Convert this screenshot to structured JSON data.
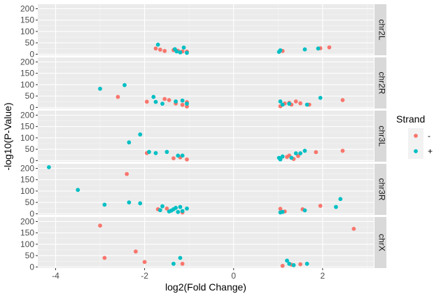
{
  "chart_data": {
    "type": "scatter",
    "xlabel": "log2(Fold Change)",
    "ylabel": "-log10(P-Value)",
    "xlim": [
      -4.4,
      3.15
    ],
    "ylim": [
      -5,
      220
    ],
    "x_ticks": [
      -4,
      -2,
      0,
      2
    ],
    "x_tick_labels": [
      "-4",
      "-2",
      "0",
      "2"
    ],
    "y_ticks": [
      0,
      50,
      100,
      150,
      200
    ],
    "y_tick_labels": [
      "0",
      "50",
      "100",
      "150",
      "200"
    ],
    "grid": true,
    "legend": {
      "title": "Strand",
      "placement": "right",
      "entries": [
        {
          "label": "-",
          "color": "#F8766D"
        },
        {
          "label": "+",
          "color": "#00BFC4"
        }
      ]
    },
    "panel_background": "#EBEBEB",
    "strip_background": "#D9D9D9",
    "facets": [
      {
        "label": "chr2L",
        "series": [
          {
            "strand": "-",
            "points": [
              [
                -1.75,
                25
              ],
              [
                -1.65,
                20
              ],
              [
                -1.55,
                14
              ],
              [
                -1.35,
                18
              ],
              [
                -1.25,
                15
              ],
              [
                -1.15,
                12
              ],
              [
                -1.05,
                11
              ],
              [
                1.1,
                14
              ],
              [
                1.95,
                26
              ],
              [
                2.15,
                30
              ]
            ]
          },
          {
            "strand": "+",
            "points": [
              [
                -1.7,
                42
              ],
              [
                -1.32,
                22
              ],
              [
                -1.28,
                12
              ],
              [
                -1.2,
                8
              ],
              [
                -1.12,
                29
              ],
              [
                -1.05,
                6
              ],
              [
                1.02,
                10
              ],
              [
                1.05,
                17
              ],
              [
                1.6,
                21
              ],
              [
                1.9,
                25
              ]
            ]
          }
        ]
      },
      {
        "label": "chr2R",
        "series": [
          {
            "strand": "-",
            "points": [
              [
                -2.6,
                46
              ],
              [
                -1.95,
                25
              ],
              [
                -1.55,
                37
              ],
              [
                -1.45,
                32
              ],
              [
                -1.3,
                17
              ],
              [
                -1.15,
                11
              ],
              [
                -1.05,
                23
              ],
              [
                -1.05,
                4
              ],
              [
                1.05,
                5
              ],
              [
                1.15,
                17
              ],
              [
                1.25,
                20
              ],
              [
                1.3,
                12
              ],
              [
                1.4,
                26
              ],
              [
                1.5,
                18
              ],
              [
                1.7,
                12
              ],
              [
                2.45,
                32
              ]
            ]
          },
          {
            "strand": "+",
            "points": [
              [
                -3.0,
                82
              ],
              [
                -2.45,
                98
              ],
              [
                -1.8,
                46
              ],
              [
                -1.75,
                24
              ],
              [
                -1.6,
                16
              ],
              [
                -1.3,
                26
              ],
              [
                -1.15,
                30
              ],
              [
                -1.05,
                16
              ],
              [
                1.05,
                26
              ],
              [
                1.1,
                12
              ],
              [
                1.25,
                16
              ],
              [
                1.65,
                12
              ],
              [
                1.95,
                42
              ]
            ]
          }
        ]
      },
      {
        "label": "chr3L",
        "series": [
          {
            "strand": "-",
            "points": [
              [
                -1.95,
                33
              ],
              [
                -1.35,
                10
              ],
              [
                -1.2,
                14
              ],
              [
                -1.05,
                5
              ],
              [
                1.05,
                9
              ],
              [
                1.2,
                16
              ],
              [
                1.25,
                22
              ],
              [
                1.35,
                7
              ],
              [
                1.45,
                20
              ],
              [
                1.85,
                37
              ],
              [
                2.45,
                43
              ]
            ]
          },
          {
            "strand": "+",
            "points": [
              [
                -2.1,
                115
              ],
              [
                -2.35,
                80
              ],
              [
                -1.9,
                38
              ],
              [
                -1.75,
                33
              ],
              [
                -1.5,
                38
              ],
              [
                -1.25,
                22
              ],
              [
                -1.15,
                22
              ],
              [
                1.02,
                12
              ],
              [
                1.05,
                5
              ],
              [
                1.1,
                18
              ],
              [
                1.3,
                12
              ],
              [
                1.4,
                32
              ],
              [
                1.5,
                32
              ],
              [
                1.6,
                43
              ]
            ]
          }
        ]
      },
      {
        "label": "chr3R",
        "series": [
          {
            "strand": "-",
            "points": [
              [
                -2.4,
                175
              ],
              [
                -1.7,
                20
              ],
              [
                -1.5,
                23
              ],
              [
                -1.15,
                6
              ],
              [
                1.05,
                22
              ],
              [
                1.15,
                10
              ],
              [
                1.55,
                20
              ],
              [
                1.95,
                35
              ]
            ]
          },
          {
            "strand": "+",
            "points": [
              [
                -4.15,
                205
              ],
              [
                -3.5,
                105
              ],
              [
                -2.9,
                40
              ],
              [
                -2.35,
                50
              ],
              [
                -2.1,
                46
              ],
              [
                -1.65,
                16
              ],
              [
                -1.6,
                33
              ],
              [
                -1.45,
                10
              ],
              [
                -1.4,
                14
              ],
              [
                -1.35,
                20
              ],
              [
                -1.3,
                26
              ],
              [
                -1.25,
                8
              ],
              [
                -1.2,
                30
              ],
              [
                -1.15,
                12
              ],
              [
                -1.05,
                23
              ],
              [
                1.05,
                6
              ],
              [
                1.1,
                8
              ],
              [
                1.6,
                15
              ],
              [
                2.3,
                30
              ],
              [
                2.4,
                65
              ]
            ]
          }
        ]
      },
      {
        "label": "chrX",
        "series": [
          {
            "strand": "-",
            "points": [
              [
                -3.0,
                182
              ],
              [
                -2.9,
                40
              ],
              [
                -2.2,
                68
              ],
              [
                -2.0,
                22
              ],
              [
                -1.15,
                14
              ],
              [
                1.1,
                5
              ],
              [
                1.3,
                10
              ],
              [
                1.5,
                12
              ],
              [
                2.7,
                168
              ]
            ]
          },
          {
            "strand": "+",
            "points": [
              [
                -1.35,
                14
              ],
              [
                -1.2,
                40
              ],
              [
                1.2,
                28
              ],
              [
                1.25,
                14
              ],
              [
                1.35,
                8
              ],
              [
                1.65,
                14
              ]
            ]
          }
        ]
      }
    ]
  }
}
